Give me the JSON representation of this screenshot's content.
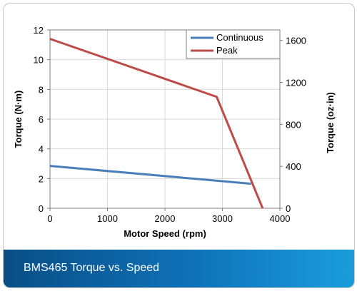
{
  "chart_data": {
    "type": "line",
    "xlabel": "Motor Speed (rpm)",
    "ylabel": "Torque (N·m)",
    "ylabel_right": "Torque (oz·in)",
    "xlim": [
      0,
      4000
    ],
    "ylim": [
      0,
      12
    ],
    "ylim_right": [
      0,
      1700
    ],
    "x_ticks": [
      0,
      1000,
      2000,
      3000,
      4000
    ],
    "y_ticks": [
      0,
      2,
      4,
      6,
      8,
      10,
      12
    ],
    "y_ticks_right": [
      0,
      400,
      800,
      1200,
      1600
    ],
    "grid": true,
    "legend_position": "top-right",
    "series": [
      {
        "name": "Continuous",
        "color": "#4a7ebb",
        "x": [
          0,
          3500
        ],
        "y": [
          2.85,
          1.65
        ]
      },
      {
        "name": "Peak",
        "color": "#be4b48",
        "x": [
          0,
          2900,
          3700
        ],
        "y": [
          11.4,
          7.5,
          0
        ]
      }
    ]
  },
  "caption": {
    "text": "BMS465 Torque vs. Speed"
  }
}
